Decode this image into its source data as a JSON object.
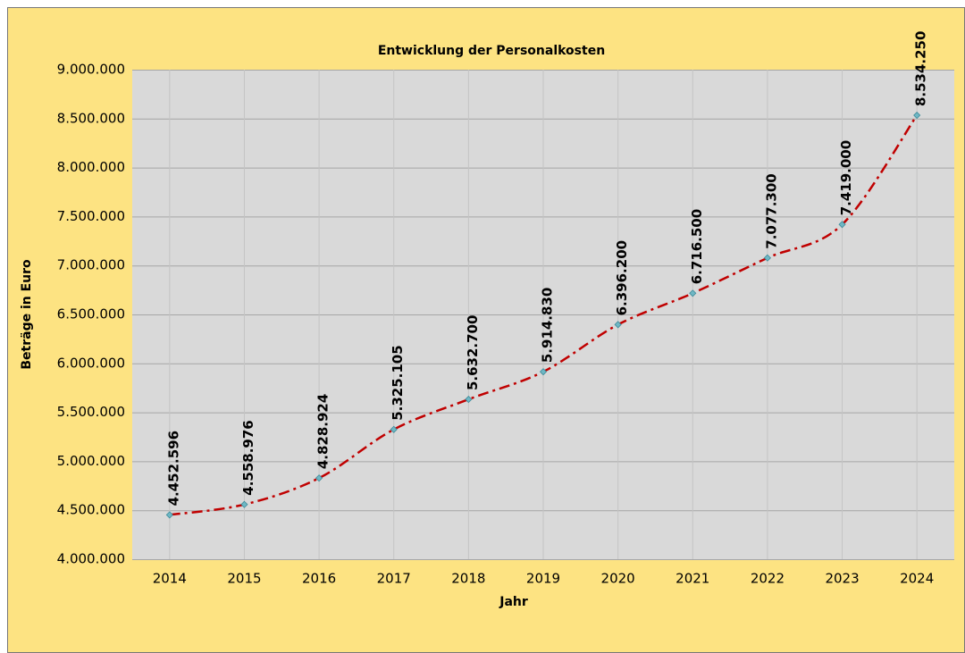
{
  "chart_data": {
    "type": "line",
    "title": "Entwicklung der Personalkosten",
    "x_label": "Jahr",
    "y_label": "Beträge in Euro",
    "categories": [
      "2014",
      "2015",
      "2016",
      "2017",
      "2018",
      "2019",
      "2020",
      "2021",
      "2022",
      "2023",
      "2024"
    ],
    "series": [
      {
        "name": "Personalkosten",
        "color": "#c00000",
        "values": [
          4452596,
          4558976,
          4828924,
          5325105,
          5632700,
          5914830,
          6396200,
          6716500,
          7077300,
          7419000,
          8534250
        ],
        "value_labels": [
          "4.452.596",
          "4.558.976",
          "4.828.924",
          "5.325.105",
          "5.632.700",
          "5.914.830",
          "6.396.200",
          "6.716.500",
          "7.077.300",
          "7.419.000",
          "8.534.250"
        ]
      }
    ],
    "ylim": [
      4000000,
      9000000
    ],
    "yticks": [
      {
        "value": 4000000,
        "label": "4.000.000"
      },
      {
        "value": 4500000,
        "label": "4.500.000"
      },
      {
        "value": 5000000,
        "label": "5.000.000"
      },
      {
        "value": 5500000,
        "label": "5.500.000"
      },
      {
        "value": 6000000,
        "label": "6.000.000"
      },
      {
        "value": 6500000,
        "label": "6.500.000"
      },
      {
        "value": 7000000,
        "label": "7.000.000"
      },
      {
        "value": 7500000,
        "label": "7.500.000"
      },
      {
        "value": 8000000,
        "label": "8.000.000"
      },
      {
        "value": 8500000,
        "label": "8.500.000"
      },
      {
        "value": 9000000,
        "label": "9.000.000"
      }
    ],
    "grid": true
  }
}
